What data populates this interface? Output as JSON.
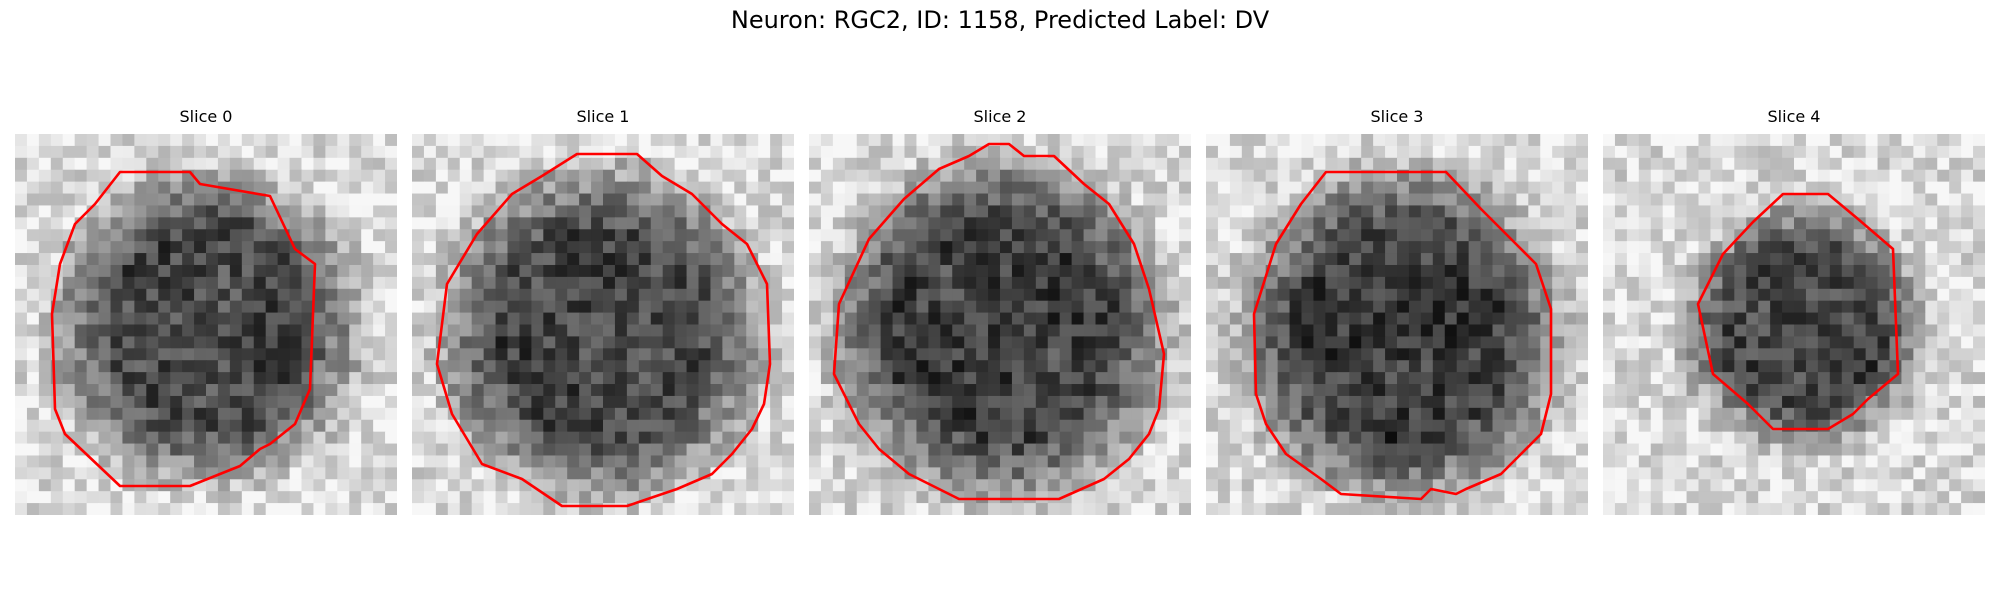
{
  "figure": {
    "title": "Neuron: RGC2, ID: 1158, Predicted Label: DV"
  },
  "slices": [
    {
      "label": "Slice 0",
      "image": "grayscale-cell-crop",
      "contour_color": "#ff0000"
    },
    {
      "label": "Slice 1",
      "image": "grayscale-cell-crop",
      "contour_color": "#ff0000"
    },
    {
      "label": "Slice 2",
      "image": "grayscale-cell-crop",
      "contour_color": "#ff0000"
    },
    {
      "label": "Slice 3",
      "image": "grayscale-cell-crop",
      "contour_color": "#ff0000"
    },
    {
      "label": "Slice 4",
      "image": "grayscale-cell-crop",
      "contour_color": "#ff0000"
    }
  ]
}
